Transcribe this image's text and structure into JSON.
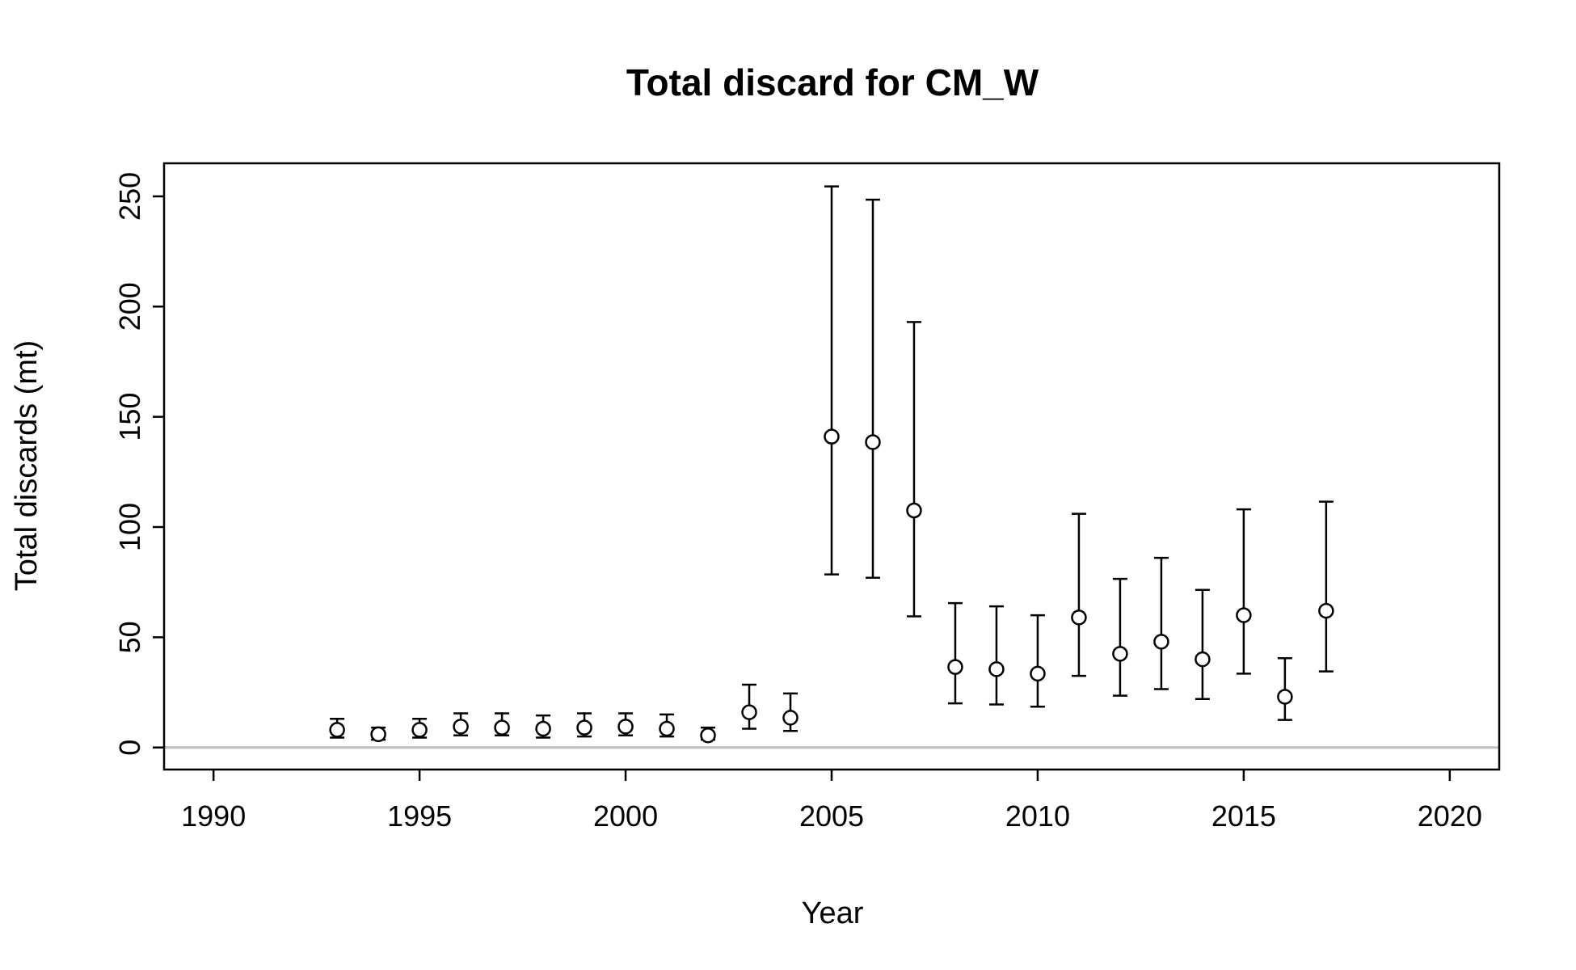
{
  "chart_data": {
    "type": "scatter",
    "title": "Total discard for CM_W",
    "xlabel": "Year",
    "ylabel": "Total discards (mt)",
    "xlim": [
      1988.8,
      2021.2
    ],
    "ylim": [
      -10,
      265
    ],
    "x_ticks": [
      1990,
      1995,
      2000,
      2005,
      2010,
      2015,
      2020
    ],
    "y_ticks": [
      0,
      50,
      100,
      150,
      200,
      250
    ],
    "grid": false,
    "reference_line": {
      "y": 0,
      "color": "#bebebe"
    },
    "point_style": "open-circle",
    "series": [
      {
        "name": "Total discards",
        "points": [
          {
            "x": 1993,
            "y": 8,
            "low": 4.5,
            "high": 13
          },
          {
            "x": 1994,
            "y": 6,
            "low": 3.5,
            "high": 9
          },
          {
            "x": 1995,
            "y": 8,
            "low": 4.5,
            "high": 13
          },
          {
            "x": 1996,
            "y": 9.5,
            "low": 5.5,
            "high": 15.5
          },
          {
            "x": 1997,
            "y": 9,
            "low": 5.5,
            "high": 15.5
          },
          {
            "x": 1998,
            "y": 8.5,
            "low": 4.5,
            "high": 14.5
          },
          {
            "x": 1999,
            "y": 9,
            "low": 5,
            "high": 15.5
          },
          {
            "x": 2000,
            "y": 9.5,
            "low": 5.5,
            "high": 15.5
          },
          {
            "x": 2001,
            "y": 8.5,
            "low": 5,
            "high": 15
          },
          {
            "x": 2002,
            "y": 5.5,
            "low": 3.5,
            "high": 9
          },
          {
            "x": 2003,
            "y": 16,
            "low": 8.5,
            "high": 28.5
          },
          {
            "x": 2004,
            "y": 13.5,
            "low": 7.5,
            "high": 24.5
          },
          {
            "x": 2005,
            "y": 141,
            "low": 78.5,
            "high": 254.5
          },
          {
            "x": 2006,
            "y": 138.5,
            "low": 77,
            "high": 248.5
          },
          {
            "x": 2007,
            "y": 107.5,
            "low": 59.5,
            "high": 193
          },
          {
            "x": 2008,
            "y": 36.5,
            "low": 20,
            "high": 65.5
          },
          {
            "x": 2009,
            "y": 35.5,
            "low": 19.5,
            "high": 64
          },
          {
            "x": 2010,
            "y": 33.5,
            "low": 18.5,
            "high": 60
          },
          {
            "x": 2011,
            "y": 59,
            "low": 32.5,
            "high": 106
          },
          {
            "x": 2012,
            "y": 42.5,
            "low": 23.5,
            "high": 76.5
          },
          {
            "x": 2013,
            "y": 48,
            "low": 26.5,
            "high": 86
          },
          {
            "x": 2014,
            "y": 40,
            "low": 22,
            "high": 71.5
          },
          {
            "x": 2015,
            "y": 60,
            "low": 33.5,
            "high": 108
          },
          {
            "x": 2016,
            "y": 23,
            "low": 12.5,
            "high": 40.5
          },
          {
            "x": 2017,
            "y": 62,
            "low": 34.5,
            "high": 111.5
          }
        ]
      }
    ]
  }
}
